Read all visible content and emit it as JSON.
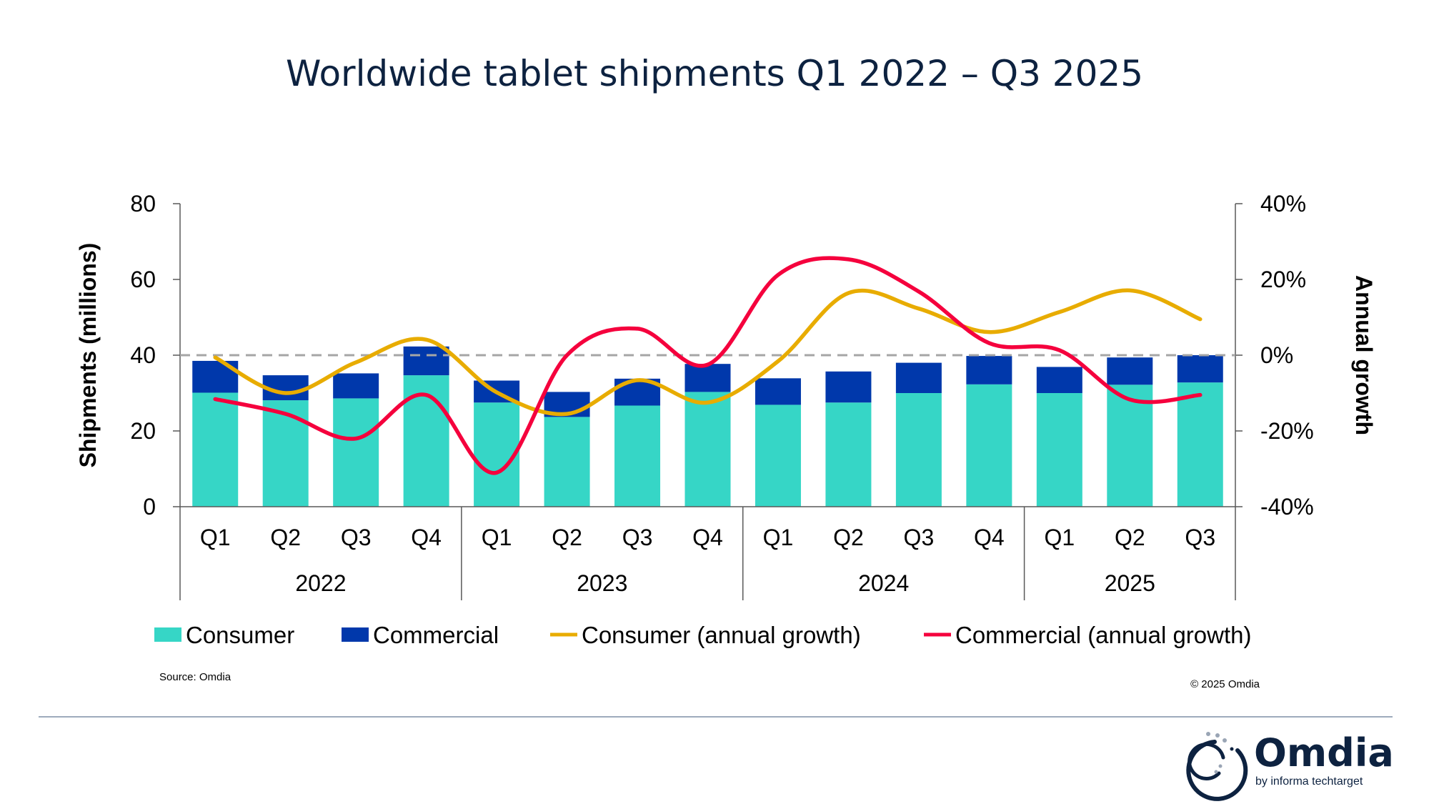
{
  "chart_data": {
    "type": "bar",
    "title": "Worldwide tablet shipments Q1 2022 – Q3 2025",
    "ylabel": "Shipments (millions)",
    "y2label": "Annual growth",
    "ylim": [
      0,
      80
    ],
    "y2lim": [
      -40,
      40
    ],
    "yticks": [
      "0",
      "20",
      "40",
      "60",
      "80"
    ],
    "y2ticks": [
      "-40%",
      "-20%",
      "0%",
      "20%",
      "40%"
    ],
    "categories": [
      "Q1",
      "Q2",
      "Q3",
      "Q4",
      "Q1",
      "Q2",
      "Q3",
      "Q4",
      "Q1",
      "Q2",
      "Q3",
      "Q4",
      "Q1",
      "Q2",
      "Q3"
    ],
    "groups": [
      {
        "label": "2022",
        "count": 4
      },
      {
        "label": "2023",
        "count": 4
      },
      {
        "label": "2024",
        "count": 4
      },
      {
        "label": "2025",
        "count": 3
      }
    ],
    "series": [
      {
        "name": "Consumer",
        "kind": "bar-stacked",
        "axis": "left",
        "color": "#36d6c6",
        "values": [
          30.1,
          28.1,
          28.6,
          34.7,
          27.5,
          23.7,
          26.7,
          30.3,
          26.9,
          27.5,
          30.0,
          32.3,
          30.0,
          32.2,
          32.8
        ]
      },
      {
        "name": "Commercial",
        "kind": "bar-stacked",
        "axis": "left",
        "color": "#0038ab",
        "values": [
          8.4,
          6.6,
          6.6,
          7.6,
          5.8,
          6.6,
          7.1,
          7.4,
          7.0,
          8.2,
          8.0,
          7.5,
          6.9,
          7.2,
          7.2
        ]
      },
      {
        "name": "Consumer (annual growth)",
        "kind": "line",
        "axis": "right",
        "color": "#e8ac00",
        "values": [
          -0.6,
          -10.0,
          -1.9,
          4.1,
          -9.8,
          -15.5,
          -6.6,
          -12.5,
          -1.6,
          16.4,
          12.3,
          6.1,
          11.4,
          17.1,
          9.5
        ]
      },
      {
        "name": "Commercial (annual growth)",
        "kind": "line",
        "axis": "right",
        "color": "#f5003d",
        "values": [
          -11.6,
          -15.5,
          -22.0,
          -10.5,
          -31.0,
          0.0,
          7.0,
          -2.5,
          21.2,
          25.3,
          16.8,
          3.2,
          1.3,
          -11.7,
          -10.5
        ]
      }
    ],
    "reference_line": {
      "axis": "right",
      "value": 0,
      "style": "dashed",
      "color": "#a6a6a6"
    },
    "legend": "bottom",
    "grid": false
  },
  "source": "Source: Omdia",
  "copyright": "© 2025 Omdia",
  "logo": {
    "name": "Omdia",
    "tagline": "by informa techtarget",
    "color": "#0d2240"
  }
}
